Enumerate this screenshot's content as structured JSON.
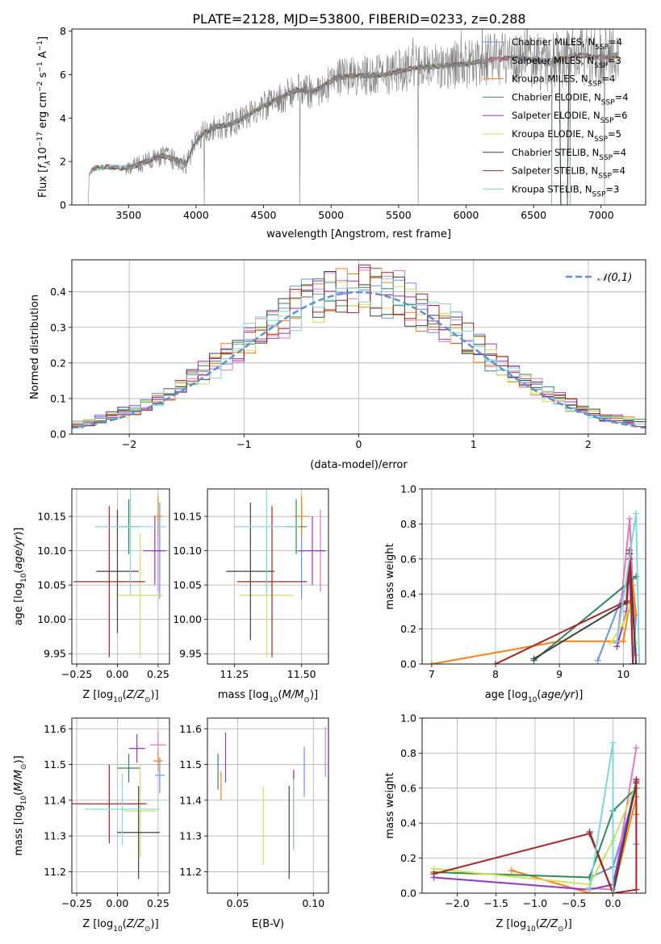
{
  "title": "PLATE=2128, MJD=53800, FIBERID=0233, z=0.288",
  "colors": {
    "Chabrier MILES": "#6495ed",
    "Salpeter MILES": "#e377c2",
    "Kroupa MILES": "#ff7f0e",
    "Chabrier ELODIE": "#2e8b57",
    "Salpeter ELODIE": "#9932cc",
    "Kroupa ELODIE": "#d4e157",
    "Chabrier STELIB": "#404040",
    "Salpeter STELIB": "#b22222",
    "Kroupa STELIB": "#7fd8d8",
    "gaussian": "#5b8fd6",
    "data": "#808080"
  },
  "chart_data": [
    {
      "id": "spectrum",
      "type": "line",
      "xlabel": "wavelength [Angstrom, rest frame]",
      "ylabel": "Flux [f_λ10^{-17} erg cm^{-2} s^{-1} A^{-1}]",
      "xlim": [
        3080,
        7330
      ],
      "ylim": [
        0,
        8.1
      ],
      "xticks": [
        3500,
        4000,
        4500,
        5000,
        5500,
        6000,
        6500,
        7000
      ],
      "yticks": [
        0,
        2,
        4,
        6,
        8
      ],
      "grid": false,
      "legend_position": "top-right",
      "legend": [
        {
          "model": "Chabrier MILES",
          "n": "4"
        },
        {
          "model": "Salpeter MILES",
          "n": "3"
        },
        {
          "model": "Kroupa MILES",
          "n": "4"
        },
        {
          "model": "Chabrier ELODIE",
          "n": "4"
        },
        {
          "model": "Salpeter ELODIE",
          "n": "6"
        },
        {
          "model": "Kroupa ELODIE",
          "n": "5"
        },
        {
          "model": "Chabrier STELIB",
          "n": "4"
        },
        {
          "model": "Salpeter STELIB",
          "n": "4"
        },
        {
          "model": "Kroupa STELIB",
          "n": "3"
        }
      ],
      "continuum": [
        [
          3200,
          0
        ],
        [
          3210,
          1.5
        ],
        [
          3250,
          1.7
        ],
        [
          3350,
          1.75
        ],
        [
          3450,
          1.7
        ],
        [
          3550,
          1.8
        ],
        [
          3650,
          2.05
        ],
        [
          3750,
          2.25
        ],
        [
          3850,
          2.1
        ],
        [
          3930,
          1.9
        ],
        [
          3980,
          2.7
        ],
        [
          4050,
          3.3
        ],
        [
          4150,
          3.6
        ],
        [
          4250,
          3.7
        ],
        [
          4350,
          4.0
        ],
        [
          4450,
          4.4
        ],
        [
          4550,
          4.7
        ],
        [
          4650,
          5.0
        ],
        [
          4750,
          5.3
        ],
        [
          4850,
          5.2
        ],
        [
          4950,
          5.5
        ],
        [
          5050,
          5.9
        ],
        [
          5200,
          5.95
        ],
        [
          5400,
          6.0
        ],
        [
          5600,
          6.3
        ],
        [
          5800,
          6.4
        ],
        [
          6000,
          6.5
        ],
        [
          6200,
          6.7
        ],
        [
          6400,
          6.8
        ],
        [
          6600,
          6.5
        ],
        [
          6800,
          6.9
        ],
        [
          7000,
          6.8
        ],
        [
          7130,
          6.9
        ]
      ]
    },
    {
      "id": "residuals",
      "type": "area",
      "xlabel": "(data-model)/error",
      "ylabel": "Normed distribution",
      "xlim": [
        -2.5,
        2.5
      ],
      "ylim": [
        0,
        0.49
      ],
      "xticks": [
        -2,
        -1,
        0,
        1,
        2
      ],
      "yticks": [
        0.0,
        0.1,
        0.2,
        0.3,
        0.4
      ],
      "grid": true,
      "legend_position": "top-right",
      "legend_gaussian": "𝒩(0,1)",
      "bin_width": 0.1,
      "bin_start": -2.5,
      "n_bins": 50
    },
    {
      "id": "age_vs_Z",
      "type": "scatter",
      "xlabel": "Z [log10(Z/Z⊙)]",
      "ylabel": "age [log10(age/yr)]",
      "xlim": [
        -0.28,
        0.32
      ],
      "ylim": [
        9.935,
        10.19
      ],
      "xticks": [
        -0.25,
        0.0,
        0.25
      ],
      "yticks": [
        9.95,
        10.0,
        10.05,
        10.1,
        10.15
      ],
      "grid": true,
      "points": [
        {
          "model": "Chabrier MILES",
          "x": 0.26,
          "xerr": 0.03,
          "y": 10.1,
          "yerr": 0.07
        },
        {
          "model": "Salpeter MILES",
          "x": 0.25,
          "xerr": 0.03,
          "y": 10.1,
          "yerr": 0.06
        },
        {
          "model": "Kroupa MILES",
          "x": 0.25,
          "xerr": 0.03,
          "y": 10.15,
          "yerr": 0.03
        },
        {
          "model": "Chabrier ELODIE",
          "x": 0.07,
          "xerr": 0.06,
          "y": 10.135,
          "yerr": 0.04
        },
        {
          "model": "Salpeter ELODIE",
          "x": 0.23,
          "xerr": 0.07,
          "y": 10.1,
          "yerr": 0.05
        },
        {
          "model": "Kroupa ELODIE",
          "x": 0.14,
          "xerr": 0.14,
          "y": 10.035,
          "yerr": 0.09
        },
        {
          "model": "Chabrier STELIB",
          "x": 0.0,
          "xerr": 0.13,
          "y": 10.07,
          "yerr": 0.09
        },
        {
          "model": "Salpeter STELIB",
          "x": -0.05,
          "xerr": 0.22,
          "y": 10.055,
          "yerr": 0.11
        },
        {
          "model": "Kroupa STELIB",
          "x": 0.08,
          "xerr": 0.22,
          "y": 10.135,
          "yerr": 0.1
        }
      ]
    },
    {
      "id": "age_vs_mass",
      "type": "scatter",
      "xlabel": "mass [log10(M/M⊙)]",
      "ylabel": "",
      "xlim": [
        11.15,
        11.6
      ],
      "ylim": [
        9.935,
        10.19
      ],
      "xticks": [
        11.25,
        11.5
      ],
      "yticks": [
        9.95,
        10.0,
        10.05,
        10.1,
        10.15
      ],
      "grid": true,
      "points": [
        {
          "model": "Chabrier MILES",
          "x": 11.5,
          "xerr": 0.02,
          "y": 10.1,
          "yerr": 0.07
        },
        {
          "model": "Salpeter MILES",
          "x": 11.57,
          "xerr": 0.02,
          "y": 10.1,
          "yerr": 0.06
        },
        {
          "model": "Kroupa MILES",
          "x": 11.5,
          "xerr": 0.03,
          "y": 10.15,
          "yerr": 0.03
        },
        {
          "model": "Chabrier ELODIE",
          "x": 11.48,
          "xerr": 0.04,
          "y": 10.135,
          "yerr": 0.04
        },
        {
          "model": "Salpeter ELODIE",
          "x": 11.54,
          "xerr": 0.05,
          "y": 10.1,
          "yerr": 0.05
        },
        {
          "model": "Kroupa ELODIE",
          "x": 11.37,
          "xerr": 0.1,
          "y": 10.035,
          "yerr": 0.09
        },
        {
          "model": "Chabrier STELIB",
          "x": 11.31,
          "xerr": 0.09,
          "y": 10.07,
          "yerr": 0.1
        },
        {
          "model": "Salpeter STELIB",
          "x": 11.39,
          "xerr": 0.13,
          "y": 10.055,
          "yerr": 0.11
        },
        {
          "model": "Kroupa STELIB",
          "x": 11.37,
          "xerr": 0.12,
          "y": 10.135,
          "yerr": 0.1
        }
      ]
    },
    {
      "id": "weight_vs_age",
      "type": "line",
      "xlabel": "age [log10(age/yr)]",
      "ylabel": "mass weight",
      "xlim": [
        6.85,
        10.35
      ],
      "ylim": [
        0,
        1.0
      ],
      "xticks": [
        7,
        8,
        9,
        10
      ],
      "yticks": [
        0.0,
        0.2,
        0.4,
        0.6,
        0.8,
        1.0
      ],
      "grid": true,
      "series": [
        {
          "model": "Chabrier MILES",
          "points": [
            [
              9.6,
              0.02
            ],
            [
              10.1,
              0.5
            ],
            [
              10.15,
              0.0
            ],
            [
              10.2,
              0.28
            ]
          ]
        },
        {
          "model": "Salpeter MILES",
          "points": [
            [
              9.9,
              0.12
            ],
            [
              10.1,
              0.83
            ],
            [
              10.2,
              0.05
            ]
          ]
        },
        {
          "model": "Kroupa MILES",
          "points": [
            [
              7.0,
              0.0
            ],
            [
              9.0,
              0.13
            ],
            [
              10.0,
              0.13
            ],
            [
              10.15,
              0.45
            ],
            [
              10.2,
              0.28
            ]
          ]
        },
        {
          "model": "Chabrier ELODIE",
          "points": [
            [
              8.6,
              0.02
            ],
            [
              10.1,
              0.47
            ],
            [
              10.2,
              0.5
            ]
          ]
        },
        {
          "model": "Salpeter ELODIE",
          "points": [
            [
              9.9,
              0.1
            ],
            [
              10.05,
              0.3
            ],
            [
              10.1,
              0.6
            ],
            [
              10.15,
              0.0
            ],
            [
              10.2,
              0.0
            ]
          ]
        },
        {
          "model": "Kroupa ELODIE",
          "points": [
            [
              9.8,
              0.12
            ],
            [
              10.0,
              0.23
            ],
            [
              10.1,
              0.33
            ],
            [
              10.2,
              0.12
            ]
          ]
        },
        {
          "model": "Chabrier STELIB",
          "points": [
            [
              8.6,
              0.03
            ],
            [
              10.05,
              0.35
            ],
            [
              10.1,
              0.63
            ],
            [
              10.2,
              0.0
            ]
          ]
        },
        {
          "model": "Salpeter STELIB",
          "points": [
            [
              8.0,
              0.0
            ],
            [
              10.05,
              0.36
            ],
            [
              10.1,
              0.65
            ],
            [
              10.15,
              0.0
            ]
          ]
        },
        {
          "model": "Kroupa STELIB",
          "points": [
            [
              9.9,
              0.13
            ],
            [
              10.2,
              0.86
            ],
            [
              10.25,
              0.0
            ]
          ]
        }
      ]
    },
    {
      "id": "mass_vs_Z",
      "type": "scatter",
      "xlabel": "Z [log10(Z/Z⊙)]",
      "ylabel": "mass [log10(M/M⊙)]",
      "xlim": [
        -0.28,
        0.32
      ],
      "ylim": [
        11.14,
        11.63
      ],
      "xticks": [
        -0.25,
        0.0,
        0.25
      ],
      "yticks": [
        11.2,
        11.3,
        11.4,
        11.5,
        11.6
      ],
      "grid": true,
      "points": [
        {
          "model": "Chabrier MILES",
          "x": 0.26,
          "xerr": 0.03,
          "y": 11.47,
          "yerr": 0.05
        },
        {
          "model": "Salpeter MILES",
          "x": 0.25,
          "xerr": 0.05,
          "y": 11.555,
          "yerr": 0.04
        },
        {
          "model": "Kroupa MILES",
          "x": 0.25,
          "xerr": 0.03,
          "y": 11.51,
          "yerr": 0.03
        },
        {
          "model": "Chabrier ELODIE",
          "x": 0.07,
          "xerr": 0.07,
          "y": 11.49,
          "yerr": 0.04
        },
        {
          "model": "Salpeter ELODIE",
          "x": 0.12,
          "xerr": 0.05,
          "y": 11.545,
          "yerr": 0.04
        },
        {
          "model": "Kroupa ELODIE",
          "x": 0.14,
          "xerr": 0.1,
          "y": 11.37,
          "yerr": 0.13
        },
        {
          "model": "Chabrier STELIB",
          "x": 0.13,
          "xerr": 0.13,
          "y": 11.31,
          "yerr": 0.13
        },
        {
          "model": "Salpeter STELIB",
          "x": -0.05,
          "xerr": 0.23,
          "y": 11.39,
          "yerr": 0.11
        },
        {
          "model": "Kroupa STELIB",
          "x": 0.03,
          "xerr": 0.23,
          "y": 11.375,
          "yerr": 0.1
        }
      ]
    },
    {
      "id": "mass_vs_EBV",
      "type": "scatter",
      "xlabel": "E(B-V)",
      "ylabel": "",
      "xlim": [
        0.03,
        0.11
      ],
      "ylim": [
        11.14,
        11.63
      ],
      "xticks": [
        0.05,
        0.1
      ],
      "yticks": [
        11.2,
        11.3,
        11.4,
        11.5,
        11.6
      ],
      "grid": true,
      "points": [
        {
          "model": "Chabrier MILES",
          "x": 0.094,
          "y": 11.48,
          "yerr": 0.07
        },
        {
          "model": "Salpeter MILES",
          "x": 0.108,
          "y": 11.535,
          "yerr": 0.07
        },
        {
          "model": "Kroupa MILES",
          "x": 0.039,
          "y": 11.44,
          "yerr": 0.04
        },
        {
          "model": "Chabrier ELODIE",
          "x": 0.037,
          "y": 11.48,
          "yerr": 0.05
        },
        {
          "model": "Salpeter ELODIE",
          "x": 0.042,
          "y": 11.52,
          "yerr": 0.07
        },
        {
          "model": "Kroupa ELODIE",
          "x": 0.067,
          "y": 11.33,
          "yerr": 0.11
        },
        {
          "model": "Chabrier STELIB",
          "x": 0.084,
          "y": 11.31,
          "yerr": 0.13
        },
        {
          "model": "Salpeter STELIB",
          "x": 0.087,
          "y": 11.375,
          "yerr": 0.11
        },
        {
          "model": "Kroupa STELIB",
          "x": 0.087,
          "y": 11.36,
          "yerr": 0.1
        }
      ]
    },
    {
      "id": "weight_vs_Z",
      "type": "line",
      "xlabel": "Z [log10(Z/Z⊙)]",
      "ylabel": "mass weight",
      "xlim": [
        -2.45,
        0.42
      ],
      "ylim": [
        0,
        1.0
      ],
      "xticks": [
        -2.0,
        -1.5,
        -1.0,
        -0.5,
        0.0
      ],
      "yticks": [
        0.0,
        0.2,
        0.4,
        0.6,
        0.8,
        1.0
      ],
      "grid": true,
      "series": [
        {
          "model": "Chabrier MILES",
          "points": [
            [
              -0.3,
              0.09
            ],
            [
              0.0,
              0.15
            ],
            [
              0.3,
              0.6
            ],
            [
              0.3,
              0.28
            ]
          ]
        },
        {
          "model": "Salpeter MILES",
          "points": [
            [
              -0.3,
              0.03
            ],
            [
              0.0,
              0.02
            ],
            [
              0.3,
              0.83
            ]
          ]
        },
        {
          "model": "Kroupa MILES",
          "points": [
            [
              -1.3,
              0.13
            ],
            [
              -0.3,
              0.0
            ],
            [
              0.0,
              0.0
            ],
            [
              0.3,
              0.55
            ],
            [
              0.3,
              0.45
            ]
          ]
        },
        {
          "model": "Chabrier ELODIE",
          "points": [
            [
              -2.3,
              0.12
            ],
            [
              -0.3,
              0.09
            ],
            [
              0.0,
              0.47
            ],
            [
              0.3,
              0.6
            ]
          ]
        },
        {
          "model": "Salpeter ELODIE",
          "points": [
            [
              -2.3,
              0.09
            ],
            [
              -0.3,
              0.02
            ],
            [
              0.0,
              0.05
            ],
            [
              0.3,
              0.64
            ]
          ]
        },
        {
          "model": "Kroupa ELODIE",
          "points": [
            [
              -2.3,
              0.14
            ],
            [
              -0.3,
              0.05
            ],
            [
              0.0,
              0.3
            ],
            [
              0.3,
              0.62
            ]
          ]
        },
        {
          "model": "Chabrier STELIB",
          "points": [
            [
              -0.3,
              0.35
            ],
            [
              0.0,
              0.0
            ],
            [
              0.3,
              0.63
            ]
          ]
        },
        {
          "model": "Salpeter STELIB",
          "points": [
            [
              -2.3,
              0.11
            ],
            [
              -0.3,
              0.34
            ],
            [
              0.0,
              0.0
            ],
            [
              0.3,
              0.02
            ],
            [
              0.3,
              0.65
            ]
          ]
        },
        {
          "model": "Kroupa STELIB",
          "points": [
            [
              -0.3,
              0.02
            ],
            [
              0.0,
              0.86
            ],
            [
              0.0,
              0.0
            ]
          ]
        }
      ]
    }
  ]
}
